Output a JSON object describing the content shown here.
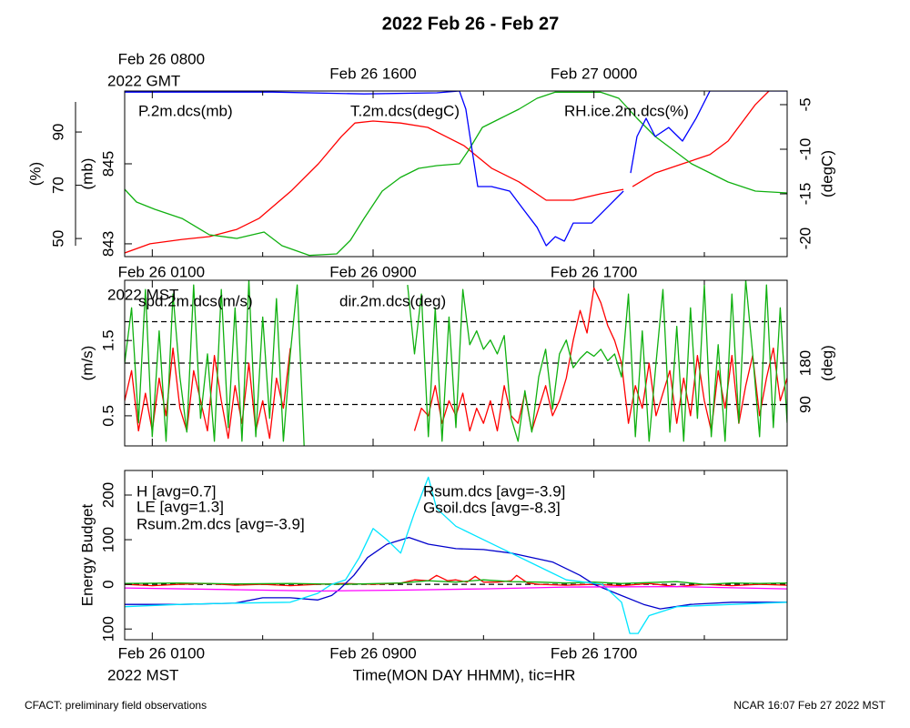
{
  "chart_data": [
    {
      "type": "line",
      "title": "2022 Feb 26 - Feb 27",
      "xlim": [
        0,
        24
      ],
      "xticks": [
        {
          "value": 1,
          "label": "Feb 26 0800"
        },
        {
          "value": 9,
          "label": "Feb 26 1600"
        },
        {
          "value": 17,
          "label": "Feb 27 0000"
        }
      ],
      "xminor": [
        5,
        13,
        21
      ],
      "x_sublabel": "2022 GMT",
      "ylim": [
        842.68,
        846.82
      ],
      "yticks": [
        843,
        845
      ],
      "ylabel": "(mb)",
      "y2lim": [
        -22.04,
        -3.47
      ],
      "y2ticks": [
        -5,
        -10,
        -15,
        -20
      ],
      "y2label": "(degC)",
      "y3lim": [
        43.2,
        105.4
      ],
      "y3ticks": [
        50,
        70,
        90
      ],
      "y3label": "(%)",
      "series": [
        {
          "name": "P.2m.dcs(mb)",
          "color": "#ff0000",
          "x": [
            0,
            0.92,
            2.08,
            3.07,
            4.06,
            4.88,
            6.03,
            7.02,
            7.85,
            8.34,
            9.0,
            9.99,
            10.98,
            11.64,
            12.3,
            13.29,
            14.28,
            15.27,
            16.25,
            17.24,
            18.07,
            18.2,
            18.4,
            19.22,
            20.21,
            21.2,
            21.86,
            22.85,
            23.34
          ],
          "values": [
            842.77,
            843.0,
            843.11,
            843.18,
            843.36,
            843.64,
            844.32,
            845.0,
            845.68,
            846.02,
            846.07,
            846.02,
            845.91,
            845.68,
            845.45,
            844.89,
            844.55,
            844.09,
            844.09,
            844.25,
            844.36,
            null,
            844.43,
            844.77,
            845.0,
            845.23,
            845.57,
            846.48,
            846.82
          ]
        },
        {
          "name": "T.2m.dcs(degC)",
          "color": "#10b010",
          "axis": "y2",
          "x": [
            0,
            0.43,
            1.09,
            2.08,
            3.07,
            4.06,
            5.05,
            5.7,
            6.69,
            7.68,
            8.18,
            8.67,
            9.33,
            9.99,
            10.65,
            11.31,
            12.13,
            12.46,
            12.96,
            13.62,
            14.28,
            14.94,
            15.6,
            16.59,
            17.24,
            17.9,
            18.56,
            19.22,
            19.88,
            20.54,
            21.2,
            21.86,
            22.85,
            24
          ],
          "values": [
            -14.49,
            -15.92,
            -16.73,
            -17.76,
            -19.59,
            -20.0,
            -19.29,
            -20.82,
            -21.9,
            -21.73,
            -20.2,
            -17.76,
            -14.69,
            -13.16,
            -12.14,
            -11.84,
            -11.63,
            -10.1,
            -7.55,
            -6.53,
            -5.51,
            -4.29,
            -3.6,
            -3.6,
            -3.6,
            -4.29,
            -6.53,
            -8.57,
            -10.1,
            -11.63,
            -12.65,
            -13.67,
            -14.69,
            -14.9
          ]
        },
        {
          "name": "RH.ice.2m.dcs(%)",
          "color": "#0000ff",
          "axis": "y3",
          "x": [
            0,
            5.37,
            8.67,
            11.31,
            12.13,
            12.36,
            12.56,
            12.79,
            13.29,
            13.95,
            14.44,
            14.94,
            15.27,
            15.6,
            15.93,
            16.25,
            16.92,
            17.57,
            18.07,
            18.2,
            18.33,
            18.56,
            18.89,
            19.22,
            19.71,
            20.21,
            20.7,
            21.2,
            24
          ],
          "values": [
            105.0,
            105.0,
            104.3,
            104.7,
            105.4,
            98.6,
            84.9,
            69.5,
            69.5,
            67.8,
            61.0,
            54.2,
            47.3,
            50.7,
            49.0,
            55.8,
            55.8,
            62.6,
            67.8,
            null,
            74.6,
            88.3,
            95.1,
            88.3,
            91.7,
            86.6,
            95.1,
            105.4,
            105.4
          ]
        }
      ]
    },
    {
      "type": "line",
      "xlim": [
        0,
        24
      ],
      "xticks": [
        {
          "value": 1,
          "label": "Feb 26 0100"
        },
        {
          "value": 9,
          "label": "Feb 26 0900"
        },
        {
          "value": 17,
          "label": "Feb 26 1700"
        }
      ],
      "xminor": [
        5,
        13,
        21
      ],
      "x_sublabel": "2022 MST",
      "ylim": [
        0.1,
        2.3
      ],
      "yticks": [
        0.5,
        1.5
      ],
      "ylabel": "(m/s)",
      "y2lim": [
        0,
        360
      ],
      "y2ticks": [
        90,
        180
      ],
      "y2label": "(deg)",
      "hlines": {
        "axis": "y2",
        "values": [
          90,
          180,
          270
        ]
      },
      "series": [
        {
          "name": "spd.2m.dcs(m/s)",
          "color": "#ff0000",
          "x": [
            0,
            0.25,
            0.5,
            0.75,
            1,
            1.25,
            1.5,
            1.75,
            2,
            2.25,
            2.5,
            2.75,
            3,
            3.25,
            3.5,
            3.75,
            4,
            4.25,
            4.5,
            4.75,
            5,
            5.25,
            5.5,
            5.75,
            6,
            8,
            10.5,
            10.75,
            11,
            11.25,
            11.5,
            11.75,
            12,
            12.25,
            12.5,
            12.75,
            13,
            13.25,
            13.5,
            13.75,
            14,
            14.25,
            14.5,
            14.75,
            15,
            15.25,
            15.5,
            15.75,
            16,
            16.25,
            16.5,
            16.75,
            17,
            17.25,
            17.5,
            17.75,
            18,
            18.25,
            18.5,
            18.75,
            19,
            19.25,
            19.5,
            19.75,
            20,
            20.25,
            20.5,
            20.75,
            21,
            21.25,
            21.5,
            21.75,
            22,
            22.25,
            22.5,
            22.75,
            23,
            23.25,
            23.5,
            23.75,
            24
          ],
          "values": [
            0.7,
            1.1,
            0.3,
            0.8,
            0.3,
            1.0,
            0.5,
            1.4,
            0.6,
            0.3,
            1.1,
            0.7,
            0.3,
            1.3,
            0.7,
            0.2,
            0.9,
            0.4,
            1.2,
            0.3,
            0.7,
            0.2,
            1.0,
            0.6,
            1.4,
            null,
            0.3,
            0.6,
            0.5,
            0.9,
            0.4,
            0.7,
            0.5,
            0.8,
            0.3,
            0.6,
            0.4,
            0.7,
            0.3,
            0.9,
            0.5,
            0.4,
            0.8,
            0.3,
            0.6,
            0.9,
            0.5,
            0.7,
            1.0,
            1.5,
            1.9,
            1.6,
            2.2,
            2.0,
            1.7,
            1.5,
            1.2,
            0.4,
            0.9,
            0.6,
            1.2,
            0.5,
            0.8,
            1.1,
            0.4,
            1.0,
            0.5,
            1.3,
            0.7,
            0.3,
            1.1,
            0.6,
            1.3,
            0.4,
            0.9,
            1.3,
            0.5,
            1.0,
            1.4,
            0.7,
            1.0
          ]
        },
        {
          "name": "dir.2m.dcs(deg)",
          "color": "#10b010",
          "axis": "y2",
          "x": [
            0,
            0.25,
            0.5,
            0.75,
            1,
            1.25,
            1.5,
            1.75,
            2,
            2.25,
            2.5,
            2.75,
            3,
            3.25,
            3.5,
            3.75,
            4,
            4.25,
            4.5,
            4.75,
            5,
            5.25,
            5.5,
            5.75,
            6,
            6.25,
            6.5,
            8,
            10.25,
            10.5,
            10.75,
            11,
            11.25,
            11.5,
            11.75,
            12,
            12.25,
            12.5,
            12.75,
            13,
            13.25,
            13.5,
            13.75,
            14,
            14.25,
            14.5,
            14.75,
            15,
            15.25,
            15.5,
            15.75,
            16,
            16.25,
            16.5,
            16.75,
            17,
            17.25,
            17.5,
            17.75,
            18,
            18.25,
            18.5,
            18.75,
            19,
            19.25,
            19.5,
            19.75,
            20,
            20.25,
            20.5,
            20.75,
            21,
            21.25,
            21.5,
            21.75,
            22,
            22.25,
            22.5,
            22.75,
            23,
            23.25,
            23.5,
            23.75,
            24
          ],
          "values": [
            180,
            300,
            50,
            340,
            20,
            250,
            10,
            330,
            150,
            30,
            350,
            60,
            200,
            10,
            340,
            40,
            300,
            10,
            360,
            20,
            280,
            60,
            320,
            10,
            200,
            350,
            0,
            null,
            350,
            200,
            330,
            20,
            300,
            10,
            280,
            40,
            340,
            220,
            250,
            210,
            230,
            200,
            240,
            60,
            10,
            120,
            30,
            150,
            210,
            80,
            200,
            230,
            170,
            190,
            205,
            195,
            210,
            185,
            200,
            150,
            330,
            20,
            250,
            10,
            180,
            340,
            30,
            260,
            10,
            300,
            60,
            350,
            20,
            220,
            10,
            330,
            50,
            360,
            200,
            20,
            350,
            40,
            300,
            50
          ]
        }
      ]
    },
    {
      "type": "line",
      "xlim": [
        0,
        24
      ],
      "xticks": [
        {
          "value": 1,
          "label": "Feb 26 0100"
        },
        {
          "value": 9,
          "label": "Feb 26 0900"
        },
        {
          "value": 17,
          "label": "Feb 26 1700"
        }
      ],
      "xminor": [
        5,
        13,
        21
      ],
      "x_sublabel": "2022 MST",
      "xlabel": "Time(MON DAY HHMM), tic=HR",
      "ylim": [
        -124,
        255
      ],
      "yticks": [
        {
          "value": -100,
          "label": "100"
        },
        0,
        100,
        200
      ],
      "ylabel": "Energy Budget",
      "hlines": {
        "axis": "y",
        "values": [
          0
        ]
      },
      "series": [
        {
          "name": "H [avg=0.7]",
          "color": "#ff0000",
          "x": [
            0,
            1,
            2,
            3,
            4,
            5,
            6,
            7,
            8,
            9,
            10,
            10.5,
            11,
            11.3,
            11.7,
            12,
            12.4,
            12.7,
            13,
            13.5,
            14,
            14.2,
            14.6,
            15,
            16,
            17,
            18,
            19,
            20,
            21,
            22,
            23,
            24
          ],
          "values": [
            0,
            -3,
            0,
            2,
            -2,
            0,
            -3,
            0,
            2,
            0,
            3,
            10,
            8,
            20,
            8,
            10,
            5,
            18,
            5,
            5,
            8,
            20,
            3,
            0,
            -2,
            0,
            -3,
            2,
            -5,
            0,
            -3,
            0,
            -2
          ]
        },
        {
          "name": "LE [avg=1.3]",
          "color": "#10b010",
          "x": [
            0,
            2,
            4,
            6,
            8,
            10,
            11,
            12,
            13,
            14,
            15,
            16,
            17,
            18,
            19,
            20,
            21,
            22,
            23,
            24
          ],
          "values": [
            2,
            3,
            1,
            2,
            0,
            3,
            8,
            5,
            10,
            6,
            5,
            3,
            5,
            2,
            4,
            6,
            0,
            3,
            2,
            3
          ]
        },
        {
          "name": "Rsum.2m.dcs [avg=-3.9]",
          "color": "#0000cc",
          "x": [
            0,
            2,
            4,
            5,
            6,
            7,
            7.5,
            7.8,
            8.3,
            8.8,
            9.5,
            10.3,
            11,
            12,
            13,
            14,
            15.5,
            16.5,
            17,
            17.8,
            18.8,
            19.4,
            20.5,
            22,
            24
          ],
          "values": [
            -45,
            -45,
            -42,
            -30,
            -30,
            -35,
            -25,
            -10,
            20,
            60,
            90,
            105,
            90,
            80,
            78,
            70,
            50,
            20,
            0,
            -20,
            -45,
            -55,
            -45,
            -40,
            -40
          ]
        },
        {
          "name": "Rsum.dcs [avg=-3.9]",
          "color": "#00e5ff",
          "x": [
            0,
            2,
            4,
            6,
            7,
            7.5,
            8,
            8.5,
            9,
            9.5,
            10,
            10.5,
            11,
            11.3,
            12,
            13,
            14,
            15,
            16,
            17.3,
            18,
            18.3,
            18.6,
            19,
            20,
            22,
            24
          ],
          "values": [
            -50,
            -45,
            -42,
            -40,
            -20,
            0,
            10,
            60,
            125,
            100,
            70,
            160,
            240,
            170,
            130,
            100,
            70,
            40,
            10,
            0,
            -40,
            -110,
            -110,
            -70,
            -50,
            -45,
            -40
          ]
        },
        {
          "name": "Gsoil.dcs [avg=-8.3]",
          "color": "#ff00ff",
          "x": [
            0,
            4,
            7,
            10,
            13,
            16,
            20,
            24
          ],
          "values": [
            -8,
            -12,
            -15,
            -13,
            -10,
            -6,
            -5,
            -10
          ]
        }
      ]
    }
  ],
  "footer_left": "CFACT: preliminary field observations",
  "footer_right": "NCAR 16:07 Feb 27 2022 MST"
}
